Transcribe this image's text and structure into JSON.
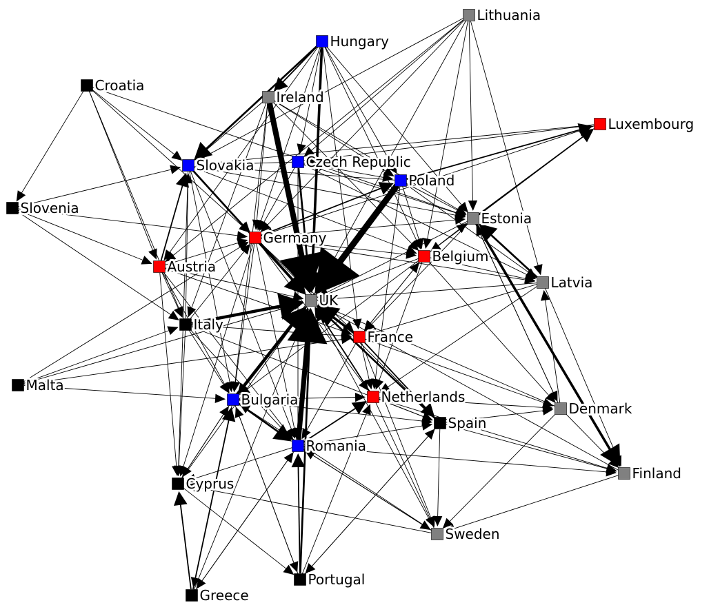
{
  "colors": {
    "red": "#ff0000",
    "blue": "#0000ff",
    "gray": "#808080",
    "black": "#000000",
    "edge": "#000000",
    "background": "#ffffff"
  },
  "nodes": [
    {
      "id": "Lithuania",
      "label": "Lithuania",
      "color": "gray"
    },
    {
      "id": "Hungary",
      "label": "Hungary",
      "color": "blue"
    },
    {
      "id": "Croatia",
      "label": "Croatia",
      "color": "black"
    },
    {
      "id": "Ireland",
      "label": "Ireland",
      "color": "gray"
    },
    {
      "id": "Luxembourg",
      "label": "Luxembourg",
      "color": "red"
    },
    {
      "id": "Slovakia",
      "label": "Slovakia",
      "color": "blue"
    },
    {
      "id": "CzechRepublic",
      "label": "Czech Republic",
      "color": "blue"
    },
    {
      "id": "Poland",
      "label": "Poland",
      "color": "blue"
    },
    {
      "id": "Slovenia",
      "label": "Slovenia",
      "color": "black"
    },
    {
      "id": "Estonia",
      "label": "Estonia",
      "color": "gray"
    },
    {
      "id": "Germany",
      "label": "Germany",
      "color": "red"
    },
    {
      "id": "Austria",
      "label": "Austria",
      "color": "red"
    },
    {
      "id": "Belgium",
      "label": "Belgium",
      "color": "red"
    },
    {
      "id": "Latvia",
      "label": "Latvia",
      "color": "gray"
    },
    {
      "id": "UK",
      "label": "UK",
      "color": "gray"
    },
    {
      "id": "Italy",
      "label": "Italy",
      "color": "black"
    },
    {
      "id": "France",
      "label": "France",
      "color": "red"
    },
    {
      "id": "Malta",
      "label": "Malta",
      "color": "black"
    },
    {
      "id": "Bulgaria",
      "label": "Bulgaria",
      "color": "blue"
    },
    {
      "id": "Netherlands",
      "label": "Netherlands",
      "color": "red"
    },
    {
      "id": "Denmark",
      "label": "Denmark",
      "color": "gray"
    },
    {
      "id": "Spain",
      "label": "Spain",
      "color": "black"
    },
    {
      "id": "Romania",
      "label": "Romania",
      "color": "blue"
    },
    {
      "id": "Finland",
      "label": "Finland",
      "color": "gray"
    },
    {
      "id": "Cyprus",
      "label": "Cyprus",
      "color": "black"
    },
    {
      "id": "Sweden",
      "label": "Sweden",
      "color": "gray"
    },
    {
      "id": "Portugal",
      "label": "Portugal",
      "color": "black"
    },
    {
      "id": "Greece",
      "label": "Greece",
      "color": "black"
    }
  ],
  "edges": [
    {
      "from": "Poland",
      "to": "UK",
      "weight": 10
    },
    {
      "from": "Ireland",
      "to": "UK",
      "weight": 9
    },
    {
      "from": "Romania",
      "to": "UK",
      "weight": 8
    },
    {
      "from": "Bulgaria",
      "to": "UK",
      "weight": 5
    },
    {
      "from": "Hungary",
      "to": "UK",
      "weight": 4
    },
    {
      "from": "Italy",
      "to": "UK",
      "weight": 5
    },
    {
      "from": "Germany",
      "to": "UK",
      "weight": 4
    },
    {
      "from": "France",
      "to": "UK",
      "weight": 4
    },
    {
      "from": "CzechRepublic",
      "to": "UK",
      "weight": 3
    },
    {
      "from": "Slovakia",
      "to": "UK",
      "weight": 3
    },
    {
      "from": "Spain",
      "to": "UK",
      "weight": 3
    },
    {
      "from": "Netherlands",
      "to": "UK",
      "weight": 2
    },
    {
      "from": "Portugal",
      "to": "UK",
      "weight": 3
    },
    {
      "from": "Estonia",
      "to": "Finland",
      "weight": 4
    },
    {
      "from": "Hungary",
      "to": "Slovakia",
      "weight": 3
    },
    {
      "from": "Hungary",
      "to": "Ireland",
      "weight": 2
    },
    {
      "from": "Latvia",
      "to": "Estonia",
      "weight": 3
    },
    {
      "from": "Bulgaria",
      "to": "Romania",
      "weight": 3
    },
    {
      "from": "Greece",
      "to": "Cyprus",
      "weight": 2
    },
    {
      "from": "Greece",
      "to": "Bulgaria",
      "weight": 2
    },
    {
      "from": "Estonia",
      "to": "Luxembourg",
      "weight": 2
    },
    {
      "from": "Poland",
      "to": "Luxembourg",
      "weight": 2
    },
    {
      "from": "Austria",
      "to": "Slovakia",
      "weight": 2
    },
    {
      "from": "Germany",
      "to": "Poland",
      "weight": 2
    },
    {
      "from": "France",
      "to": "Spain",
      "weight": 2
    },
    {
      "from": "Portugal",
      "to": "Romania",
      "weight": 2
    },
    {
      "from": "Romania",
      "to": "Netherlands",
      "weight": 2
    },
    {
      "from": "Croatia",
      "to": "Slovenia",
      "weight": 1
    },
    {
      "from": "Croatia",
      "to": "Slovakia",
      "weight": 1
    },
    {
      "from": "Croatia",
      "to": "Italy",
      "weight": 1
    },
    {
      "from": "Croatia",
      "to": "Austria",
      "weight": 1
    },
    {
      "from": "Croatia",
      "to": "Germany",
      "weight": 1
    },
    {
      "from": "Croatia",
      "to": "Estonia",
      "weight": 1
    },
    {
      "from": "Slovenia",
      "to": "Slovakia",
      "weight": 1
    },
    {
      "from": "Slovenia",
      "to": "Austria",
      "weight": 1
    },
    {
      "from": "Slovenia",
      "to": "Italy",
      "weight": 1
    },
    {
      "from": "Slovenia",
      "to": "Germany",
      "weight": 1
    },
    {
      "from": "Lithuania",
      "to": "Slovakia",
      "weight": 1
    },
    {
      "from": "Lithuania",
      "to": "Germany",
      "weight": 1
    },
    {
      "from": "Lithuania",
      "to": "Estonia",
      "weight": 1
    },
    {
      "from": "Lithuania",
      "to": "Latvia",
      "weight": 1
    },
    {
      "from": "Lithuania",
      "to": "Belgium",
      "weight": 1
    },
    {
      "from": "Lithuania",
      "to": "CzechRepublic",
      "weight": 1
    },
    {
      "from": "Lithuania",
      "to": "Austria",
      "weight": 1
    },
    {
      "from": "Lithuania",
      "to": "UK",
      "weight": 1
    },
    {
      "from": "Hungary",
      "to": "CzechRepublic",
      "weight": 1
    },
    {
      "from": "Hungary",
      "to": "Germany",
      "weight": 1
    },
    {
      "from": "Hungary",
      "to": "Poland",
      "weight": 1
    },
    {
      "from": "Hungary",
      "to": "Estonia",
      "weight": 1
    },
    {
      "from": "Hungary",
      "to": "Belgium",
      "weight": 1
    },
    {
      "from": "Hungary",
      "to": "Austria",
      "weight": 1
    },
    {
      "from": "Hungary",
      "to": "France",
      "weight": 1
    },
    {
      "from": "Ireland",
      "to": "Slovakia",
      "weight": 1
    },
    {
      "from": "Ireland",
      "to": "Poland",
      "weight": 1
    },
    {
      "from": "Ireland",
      "to": "Estonia",
      "weight": 1
    },
    {
      "from": "Ireland",
      "to": "Germany",
      "weight": 1
    },
    {
      "from": "Ireland",
      "to": "Bulgaria",
      "weight": 1
    },
    {
      "from": "Ireland",
      "to": "Italy",
      "weight": 1
    },
    {
      "from": "Ireland",
      "to": "Belgium",
      "weight": 1
    },
    {
      "from": "CzechRepublic",
      "to": "Slovakia",
      "weight": 1
    },
    {
      "from": "CzechRepublic",
      "to": "Poland",
      "weight": 1
    },
    {
      "from": "CzechRepublic",
      "to": "Estonia",
      "weight": 1
    },
    {
      "from": "CzechRepublic",
      "to": "Germany",
      "weight": 1
    },
    {
      "from": "CzechRepublic",
      "to": "Romania",
      "weight": 1
    },
    {
      "from": "CzechRepublic",
      "to": "Latvia",
      "weight": 1
    },
    {
      "from": "Poland",
      "to": "Estonia",
      "weight": 1
    },
    {
      "from": "Poland",
      "to": "Belgium",
      "weight": 1
    },
    {
      "from": "Poland",
      "to": "Slovakia",
      "weight": 1
    },
    {
      "from": "Poland",
      "to": "Netherlands",
      "weight": 1
    },
    {
      "from": "Poland",
      "to": "Bulgaria",
      "weight": 1
    },
    {
      "from": "Poland",
      "to": "Latvia",
      "weight": 1
    },
    {
      "from": "Slovakia",
      "to": "Germany",
      "weight": 1
    },
    {
      "from": "Slovakia",
      "to": "Estonia",
      "weight": 1
    },
    {
      "from": "Slovakia",
      "to": "Bulgaria",
      "weight": 1
    },
    {
      "from": "Slovakia",
      "to": "Romania",
      "weight": 1
    },
    {
      "from": "Slovakia",
      "to": "Cyprus",
      "weight": 1
    },
    {
      "from": "Slovakia",
      "to": "Belgium",
      "weight": 1
    },
    {
      "from": "Germany",
      "to": "Estonia",
      "weight": 1
    },
    {
      "from": "Germany",
      "to": "Belgium",
      "weight": 1
    },
    {
      "from": "Germany",
      "to": "Spain",
      "weight": 1
    },
    {
      "from": "Germany",
      "to": "Netherlands",
      "weight": 1
    },
    {
      "from": "Germany",
      "to": "Romania",
      "weight": 1
    },
    {
      "from": "Germany",
      "to": "Bulgaria",
      "weight": 1
    },
    {
      "from": "Germany",
      "to": "France",
      "weight": 1
    },
    {
      "from": "Germany",
      "to": "Cyprus",
      "weight": 1
    },
    {
      "from": "Germany",
      "to": "Latvia",
      "weight": 1
    },
    {
      "from": "Austria",
      "to": "Germany",
      "weight": 1
    },
    {
      "from": "Austria",
      "to": "Italy",
      "weight": 1
    },
    {
      "from": "Austria",
      "to": "UK",
      "weight": 1
    },
    {
      "from": "Austria",
      "to": "Bulgaria",
      "weight": 1
    },
    {
      "from": "Austria",
      "to": "Cyprus",
      "weight": 1
    },
    {
      "from": "Austria",
      "to": "France",
      "weight": 1
    },
    {
      "from": "Austria",
      "to": "Romania",
      "weight": 1
    },
    {
      "from": "Belgium",
      "to": "Estonia",
      "weight": 1
    },
    {
      "from": "Belgium",
      "to": "Latvia",
      "weight": 1
    },
    {
      "from": "Belgium",
      "to": "France",
      "weight": 1
    },
    {
      "from": "Belgium",
      "to": "UK",
      "weight": 1
    },
    {
      "from": "Belgium",
      "to": "Netherlands",
      "weight": 1
    },
    {
      "from": "Belgium",
      "to": "Denmark",
      "weight": 1
    },
    {
      "from": "Belgium",
      "to": "Bulgaria",
      "weight": 1
    },
    {
      "from": "Estonia",
      "to": "UK",
      "weight": 1
    },
    {
      "from": "Estonia",
      "to": "Denmark",
      "weight": 1
    },
    {
      "from": "Estonia",
      "to": "France",
      "weight": 1
    },
    {
      "from": "Latvia",
      "to": "UK",
      "weight": 1
    },
    {
      "from": "Latvia",
      "to": "France",
      "weight": 1
    },
    {
      "from": "Latvia",
      "to": "Finland",
      "weight": 1
    },
    {
      "from": "Latvia",
      "to": "Netherlands",
      "weight": 1
    },
    {
      "from": "Italy",
      "to": "Bulgaria",
      "weight": 1
    },
    {
      "from": "Italy",
      "to": "Romania",
      "weight": 1
    },
    {
      "from": "Italy",
      "to": "Germany",
      "weight": 1
    },
    {
      "from": "Italy",
      "to": "Cyprus",
      "weight": 1
    },
    {
      "from": "Italy",
      "to": "France",
      "weight": 1
    },
    {
      "from": "Italy",
      "to": "Spain",
      "weight": 1
    },
    {
      "from": "Italy",
      "to": "Slovakia",
      "weight": 1
    },
    {
      "from": "Malta",
      "to": "Italy",
      "weight": 1
    },
    {
      "from": "Malta",
      "to": "UK",
      "weight": 1
    },
    {
      "from": "Malta",
      "to": "Germany",
      "weight": 1
    },
    {
      "from": "Malta",
      "to": "France",
      "weight": 1
    },
    {
      "from": "Malta",
      "to": "Bulgaria",
      "weight": 1
    },
    {
      "from": "France",
      "to": "Netherlands",
      "weight": 1
    },
    {
      "from": "France",
      "to": "Denmark",
      "weight": 1
    },
    {
      "from": "France",
      "to": "Belgium",
      "weight": 1
    },
    {
      "from": "France",
      "to": "Romania",
      "weight": 1
    },
    {
      "from": "France",
      "to": "Sweden",
      "weight": 1
    },
    {
      "from": "Netherlands",
      "to": "Spain",
      "weight": 1
    },
    {
      "from": "Netherlands",
      "to": "Denmark",
      "weight": 1
    },
    {
      "from": "Netherlands",
      "to": "Sweden",
      "weight": 1
    },
    {
      "from": "Netherlands",
      "to": "Finland",
      "weight": 1
    },
    {
      "from": "Bulgaria",
      "to": "Cyprus",
      "weight": 1
    },
    {
      "from": "Bulgaria",
      "to": "Spain",
      "weight": 1
    },
    {
      "from": "Bulgaria",
      "to": "Netherlands",
      "weight": 1
    },
    {
      "from": "Bulgaria",
      "to": "Portugal",
      "weight": 1
    },
    {
      "from": "Bulgaria",
      "to": "Greece",
      "weight": 1
    },
    {
      "from": "Romania",
      "to": "Spain",
      "weight": 1
    },
    {
      "from": "Romania",
      "to": "Cyprus",
      "weight": 1
    },
    {
      "from": "Romania",
      "to": "Greece",
      "weight": 1
    },
    {
      "from": "Romania",
      "to": "Sweden",
      "weight": 1
    },
    {
      "from": "Romania",
      "to": "Finland",
      "weight": 1
    },
    {
      "from": "Spain",
      "to": "Denmark",
      "weight": 1
    },
    {
      "from": "Spain",
      "to": "Finland",
      "weight": 1
    },
    {
      "from": "Spain",
      "to": "Sweden",
      "weight": 1
    },
    {
      "from": "Spain",
      "to": "Portugal",
      "weight": 1
    },
    {
      "from": "Denmark",
      "to": "Finland",
      "weight": 1
    },
    {
      "from": "Denmark",
      "to": "Sweden",
      "weight": 1
    },
    {
      "from": "Denmark",
      "to": "UK",
      "weight": 1
    },
    {
      "from": "Denmark",
      "to": "Latvia",
      "weight": 1
    },
    {
      "from": "Denmark",
      "to": "Estonia",
      "weight": 1
    },
    {
      "from": "Finland",
      "to": "UK",
      "weight": 1
    },
    {
      "from": "Finland",
      "to": "Sweden",
      "weight": 1
    },
    {
      "from": "Sweden",
      "to": "Cyprus",
      "weight": 1
    },
    {
      "from": "Sweden",
      "to": "UK",
      "weight": 1
    },
    {
      "from": "Sweden",
      "to": "Romania",
      "weight": 1
    },
    {
      "from": "Sweden",
      "to": "Bulgaria",
      "weight": 1
    },
    {
      "from": "Cyprus",
      "to": "UK",
      "weight": 1
    },
    {
      "from": "Cyprus",
      "to": "Portugal",
      "weight": 1
    },
    {
      "from": "Cyprus",
      "to": "Bulgaria",
      "weight": 1
    },
    {
      "from": "Portugal",
      "to": "Bulgaria",
      "weight": 1
    },
    {
      "from": "Portugal",
      "to": "Spain",
      "weight": 1
    },
    {
      "from": "Portugal",
      "to": "Netherlands",
      "weight": 1
    },
    {
      "from": "Greece",
      "to": "UK",
      "weight": 1
    },
    {
      "from": "Greece",
      "to": "Romania",
      "weight": 1
    },
    {
      "from": "Luxembourg",
      "to": "Belgium",
      "weight": 1
    },
    {
      "from": "Luxembourg",
      "to": "CzechRepublic",
      "weight": 1
    },
    {
      "from": "Luxembourg",
      "to": "Germany",
      "weight": 1
    },
    {
      "from": "Luxembourg",
      "to": "Slovakia",
      "weight": 1
    }
  ]
}
